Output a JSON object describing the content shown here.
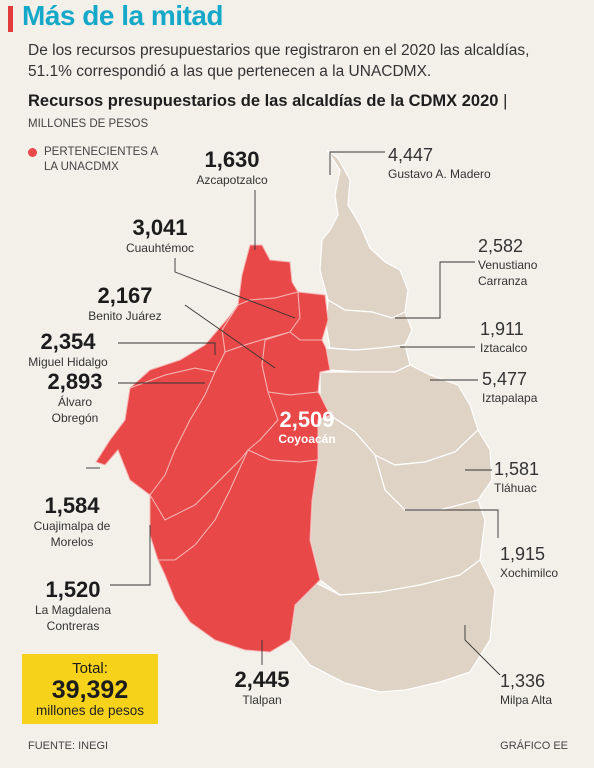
{
  "header": {
    "title": "Más de la mitad",
    "subtitle": "De los recursos presupuestarios que registraron en el 2020 las alcaldías, 51.1% correspondió a las que pertenecen a la UNACDMX."
  },
  "chart": {
    "title": "Recursos presupuestarios de las alcaldías de la CDMX 2020",
    "title_sep": "|",
    "units": "MILLONES DE PESOS",
    "legend_label": "PERTENECIENTES A LA UNACDMX",
    "colors": {
      "unacdmx": "#e84848",
      "other": "#dfd3c6",
      "accent": "#16a8c8",
      "total_box": "#f7d21a"
    }
  },
  "boroughs": {
    "azcapotzalco": {
      "value": "1,630",
      "name": "Azcapotzalco",
      "unacdmx": true
    },
    "cuauhtemoc": {
      "value": "3,041",
      "name": "Cuauhtémoc",
      "unacdmx": true
    },
    "benito_juarez": {
      "value": "2,167",
      "name": "Benito Juárez",
      "unacdmx": true
    },
    "miguel_hidalgo": {
      "value": "2,354",
      "name": "Miguel Hidalgo",
      "unacdmx": true
    },
    "alvaro_obregon": {
      "value": "2,893",
      "name1": "Álvaro",
      "name2": "Obregón",
      "unacdmx": true
    },
    "cuajimalpa": {
      "value": "1,584",
      "name1": "Cuajimalpa de",
      "name2": "Morelos",
      "unacdmx": true
    },
    "magdalena": {
      "value": "1,520",
      "name1": "La Magdalena",
      "name2": "Contreras",
      "unacdmx": true
    },
    "tlalpan": {
      "value": "2,445",
      "name": "Tlalpan",
      "unacdmx": true
    },
    "coyoacan": {
      "value": "2,509",
      "name": "Coyoacán",
      "unacdmx": true
    },
    "gustavo_madero": {
      "value": "4,447",
      "name": "Gustavo A. Madero",
      "unacdmx": false
    },
    "venustiano": {
      "value": "2,582",
      "name1": "Venustiano",
      "name2": "Carranza",
      "unacdmx": false
    },
    "iztacalco": {
      "value": "1,911",
      "name": "Iztacalco",
      "unacdmx": false
    },
    "iztapalapa": {
      "value": "5,477",
      "name": "Iztapalapa",
      "unacdmx": false
    },
    "tlahuac": {
      "value": "1,581",
      "name": "Tláhuac",
      "unacdmx": false
    },
    "xochimilco": {
      "value": "1,915",
      "name": "Xochimilco",
      "unacdmx": false
    },
    "milpa_alta": {
      "value": "1,336",
      "name": "Milpa Alta",
      "unacdmx": false
    }
  },
  "total": {
    "label": "Total:",
    "value": "39,392",
    "unit": "millones de pesos"
  },
  "footer": {
    "source": "FUENTE: INEGI",
    "credit": "GRÁFICO EE"
  }
}
